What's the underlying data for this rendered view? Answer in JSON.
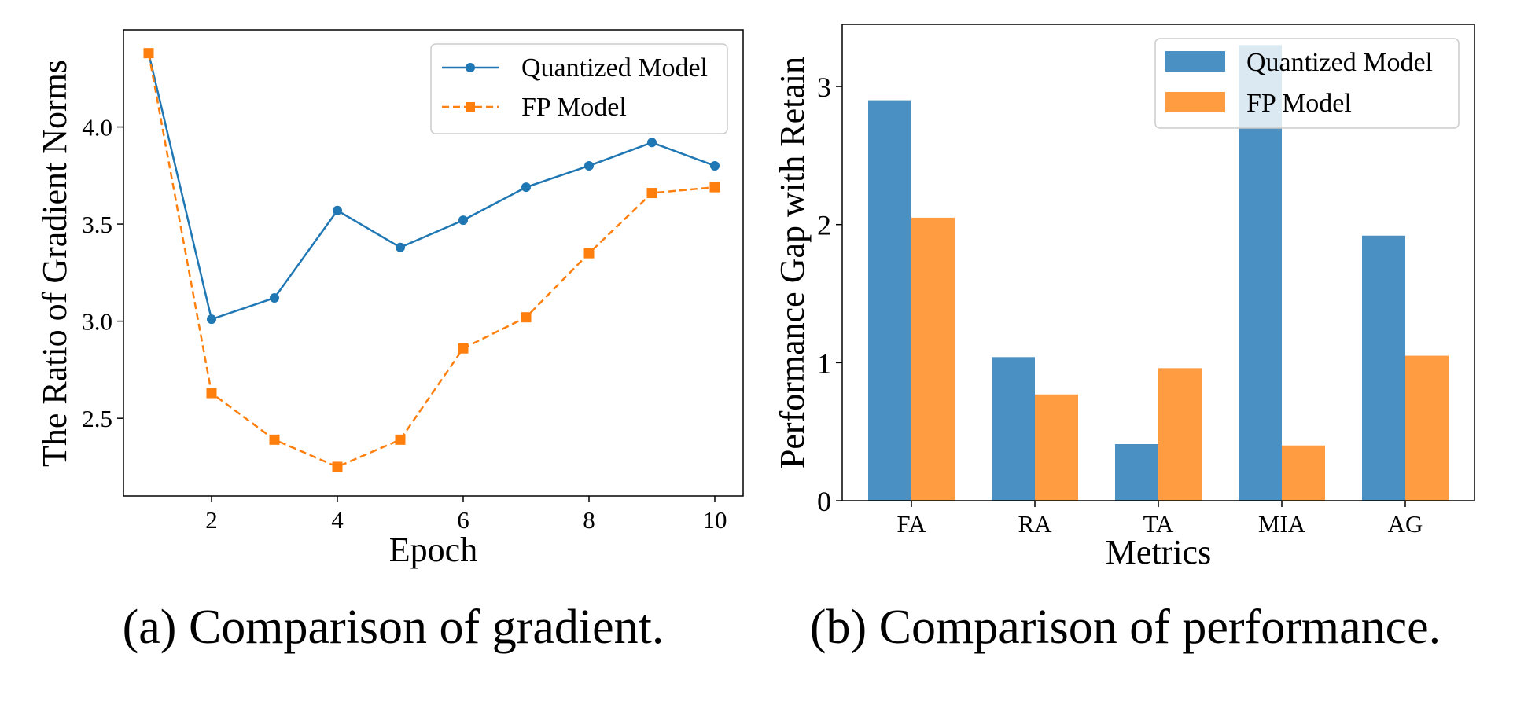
{
  "colors": {
    "quantized": "#1f77b4",
    "fp": "#ff7f0e",
    "quantized_bar": "#4a90c2",
    "fp_bar": "#ff9b40"
  },
  "chart_data": [
    {
      "type": "line",
      "caption": "(a) Comparison of gradient.",
      "xlabel": "Epoch",
      "ylabel": "The Ratio of Gradient Norms",
      "xlim": [
        0.6,
        10.45
      ],
      "ylim": [
        2.1,
        4.5
      ],
      "xticks": [
        2,
        4,
        6,
        8,
        10
      ],
      "yticks": [
        2.5,
        3.0,
        3.5,
        4.0
      ],
      "ytick_labels": [
        "2.5",
        "3.0",
        "3.5",
        "4.0"
      ],
      "grid": false,
      "legend_position": "top-right",
      "x": [
        1,
        2,
        3,
        4,
        5,
        6,
        7,
        8,
        9,
        10
      ],
      "series": [
        {
          "name": "Quantized Model",
          "marker": "circle",
          "line_style": "solid",
          "color_key": "quantized",
          "values": [
            4.38,
            3.01,
            3.12,
            3.57,
            3.38,
            3.52,
            3.69,
            3.8,
            3.92,
            3.8
          ]
        },
        {
          "name": "FP Model",
          "marker": "square",
          "line_style": "dashed",
          "color_key": "fp",
          "values": [
            4.38,
            2.63,
            2.39,
            2.25,
            2.39,
            2.86,
            3.02,
            3.35,
            3.66,
            3.69
          ]
        }
      ]
    },
    {
      "type": "bar",
      "caption": "(b) Comparison of performance.",
      "xlabel": "Metrics",
      "ylabel": "Performance Gap with Retain",
      "categories": [
        "FA",
        "RA",
        "TA",
        "MIA",
        "AG"
      ],
      "ylim": [
        0,
        3.45
      ],
      "yticks": [
        0,
        1,
        2,
        3
      ],
      "ytick_labels": [
        "0",
        "1",
        "2",
        "3"
      ],
      "grid": false,
      "legend_position": "top-right",
      "series": [
        {
          "name": "Quantized Model",
          "color_key": "quantized_bar",
          "values": [
            2.9,
            1.04,
            0.41,
            3.3,
            1.92
          ]
        },
        {
          "name": "FP Model",
          "color_key": "fp_bar",
          "values": [
            2.05,
            0.77,
            0.96,
            0.4,
            1.05
          ]
        }
      ]
    }
  ]
}
